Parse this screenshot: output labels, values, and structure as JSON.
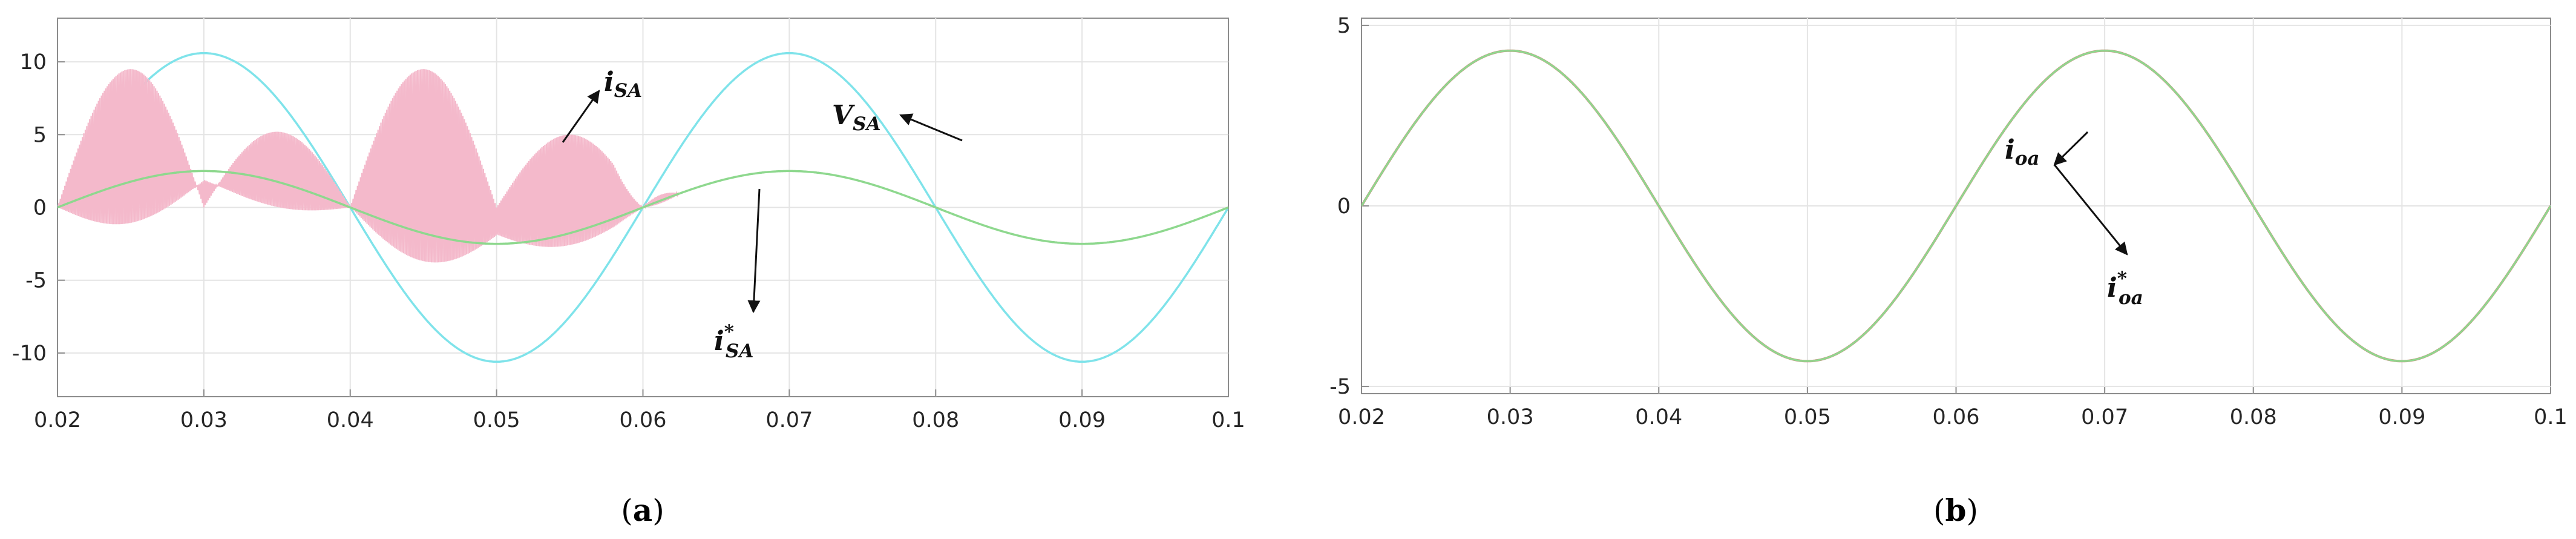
{
  "chart_data": [
    {
      "panel": "a",
      "panel_label": {
        "open": "(",
        "letter": "a",
        "close": ")"
      },
      "type": "line",
      "xlim": [
        0.02,
        0.1
      ],
      "ylim": [
        -13,
        13
      ],
      "x_ticks": [
        "0.02",
        "0.03",
        "0.04",
        "0.05",
        "0.06",
        "0.07",
        "0.08",
        "0.09",
        "0.1"
      ],
      "y_ticks": [
        "-10",
        "-5",
        "0",
        "5",
        "10"
      ],
      "grid": true,
      "series": [
        {
          "name": "V_SA",
          "color": "#7fe3ea",
          "kind": "sine",
          "amplitude": 10.6,
          "frequency_hz": 25,
          "phase_deg": 0,
          "x_range": [
            0.02,
            0.1
          ]
        },
        {
          "name": "i*_SA",
          "color": "#8ed88e",
          "kind": "sine",
          "amplitude": 2.5,
          "frequency_hz": 25,
          "phase_deg": 0,
          "x_range": [
            0.02,
            0.1
          ]
        },
        {
          "name": "i_SA",
          "color": "#f4b9cb",
          "kind": "switching",
          "x_range": [
            0.02,
            0.0625
          ],
          "values_approx": {
            "envelope_hz": 50,
            "envelope_peaks": [
              9.5,
              5.2,
              9.5,
              5.0
            ],
            "switching_hz": 5000,
            "settles_to": "i*_SA"
          }
        }
      ],
      "annotations": [
        {
          "base": "i",
          "sup": "",
          "sub": "SA",
          "color": "#111111"
        },
        {
          "base": "V",
          "sup": "",
          "sub": "SA",
          "color": "#111111"
        },
        {
          "base": "i",
          "sup": "*",
          "sub": "SA",
          "color": "#111111"
        }
      ]
    },
    {
      "panel": "b",
      "panel_label": {
        "open": "(",
        "letter": "b",
        "close": ")"
      },
      "type": "line",
      "xlim": [
        0.02,
        0.1
      ],
      "ylim": [
        -5.2,
        5.2
      ],
      "x_ticks": [
        "0.02",
        "0.03",
        "0.04",
        "0.05",
        "0.06",
        "0.07",
        "0.08",
        "0.09",
        "0.1"
      ],
      "y_ticks": [
        "-5",
        "0",
        "5"
      ],
      "grid": true,
      "series": [
        {
          "name": "i_oa",
          "color": "#c98b7a",
          "kind": "sine",
          "amplitude": 4.3,
          "frequency_hz": 25,
          "phase_deg": 0,
          "x_range": [
            0.02,
            0.1
          ]
        },
        {
          "name": "i*_oa",
          "color": "#8ed88e",
          "kind": "sine",
          "amplitude": 4.3,
          "frequency_hz": 25,
          "phase_deg": 0,
          "x_range": [
            0.02,
            0.1
          ]
        }
      ],
      "annotations": [
        {
          "base": "i",
          "sup": "",
          "sub": "oa",
          "color": "#111111"
        },
        {
          "base": "i",
          "sup": "*",
          "sub": "oa",
          "color": "#111111"
        }
      ]
    }
  ]
}
